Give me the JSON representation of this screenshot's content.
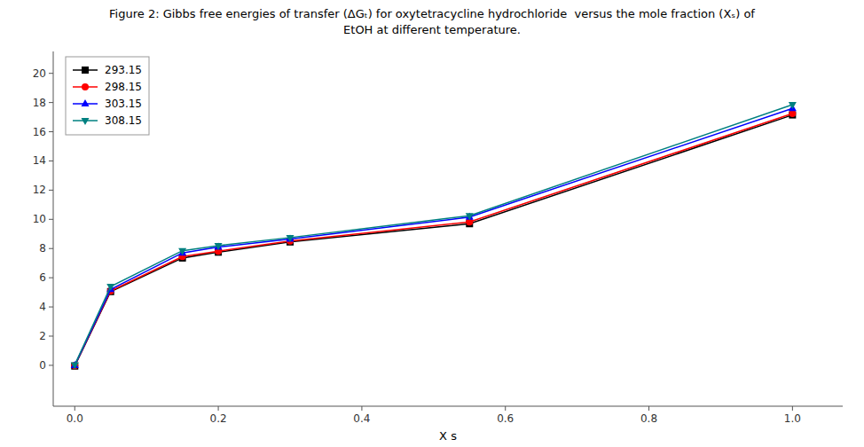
{
  "chart_data": {
    "type": "line",
    "title": "Figure 2: Gibbs free energies of transfer (ΔGₜ) for oxytetracycline hydrochloride  versus the mole fraction (Xₛ) of",
    "subtitle": "EtOH at different temperature.",
    "x_label": "X s",
    "x": [
      0.0,
      0.05,
      0.15,
      0.2,
      0.3,
      0.55,
      1.0
    ],
    "xlim": [
      -0.03,
      1.07
    ],
    "ylim": [
      -2.8,
      21.5
    ],
    "xticks": [
      {
        "value": 0.0,
        "label": "0.0"
      },
      0.2,
      0.4,
      0.6,
      0.8,
      {
        "value": 1.0,
        "label": "1.0"
      }
    ],
    "yticks": [
      0,
      2,
      4,
      6,
      8,
      10,
      12,
      14,
      16,
      18,
      20
    ],
    "grid": false,
    "legend": "upper left",
    "series": [
      {
        "name": "293.15",
        "color": "#000000",
        "marker": "square",
        "line_style": "solid",
        "values": [
          -0.05,
          5.05,
          7.35,
          7.75,
          8.45,
          9.7,
          17.15
        ]
      },
      {
        "name": "298.15",
        "color": "#ff0000",
        "marker": "circle",
        "line_style": "solid",
        "values": [
          -0.02,
          5.1,
          7.45,
          7.82,
          8.52,
          9.82,
          17.25
        ]
      },
      {
        "name": "303.15",
        "color": "#0000ff",
        "marker": "triangle-up",
        "line_style": "solid",
        "values": [
          0.0,
          5.2,
          7.7,
          8.1,
          8.65,
          10.15,
          17.6
        ]
      },
      {
        "name": "308.15",
        "color": "#008080",
        "marker": "triangle-down",
        "line_style": "solid",
        "values": [
          0.03,
          5.4,
          7.85,
          8.2,
          8.75,
          10.25,
          17.85
        ]
      }
    ]
  }
}
